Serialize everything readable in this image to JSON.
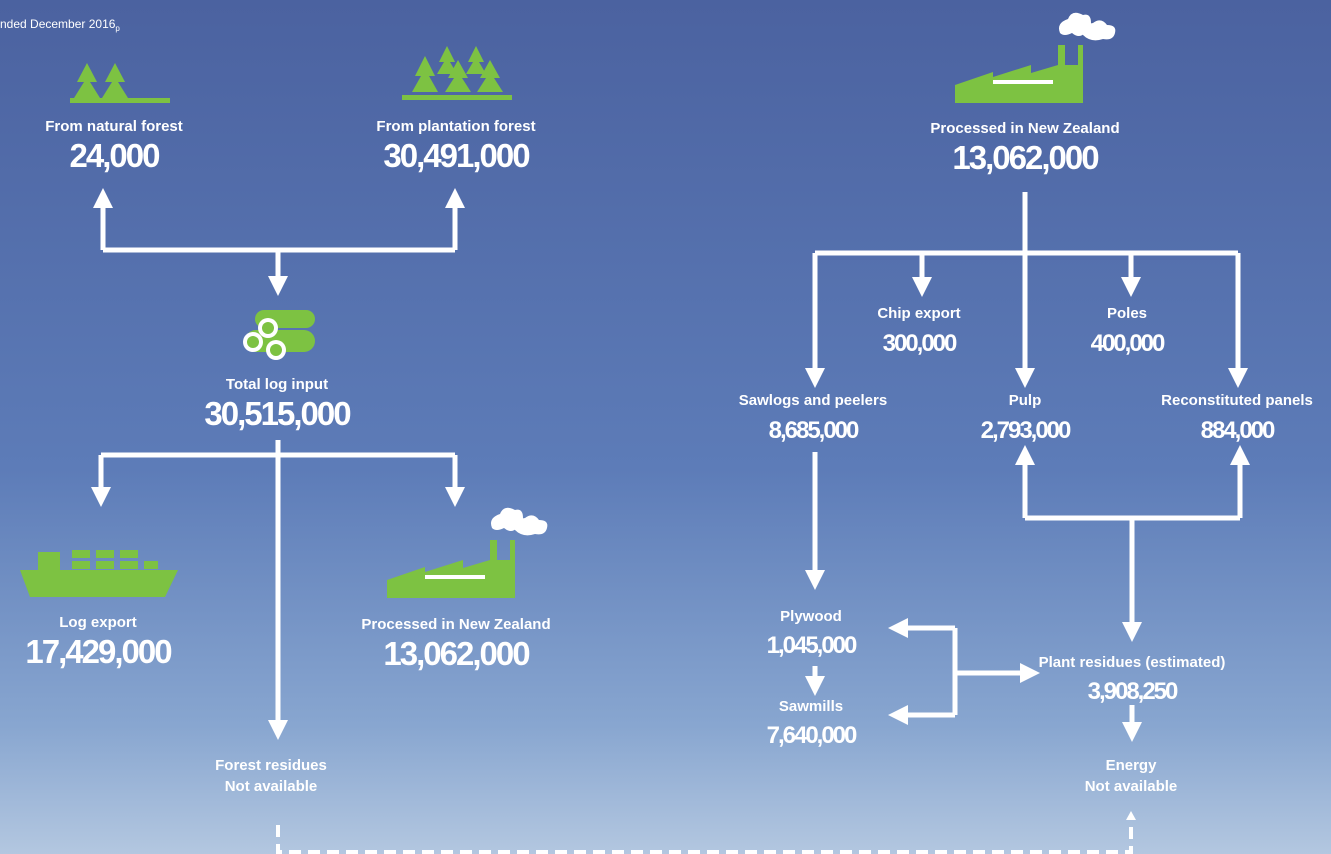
{
  "subtitle": "nded December 2016",
  "subtitle_note": "p",
  "nodes": [
    {
      "label": "From natural forest",
      "value": "24,000"
    },
    {
      "label": "From plantation forest",
      "value": "30,491,000"
    },
    {
      "label": "Total log input",
      "value": "30,515,000"
    },
    {
      "label": "Log export",
      "value": "17,429,000"
    },
    {
      "label": "Processed in New Zealand",
      "value": "13,062,000"
    },
    {
      "label": "Forest residues",
      "value": "Not available"
    },
    {
      "label": "Processed in New Zealand",
      "value": "13,062,000"
    },
    {
      "label": "Chip export",
      "value": "300,000"
    },
    {
      "label": "Poles",
      "value": "400,000"
    },
    {
      "label": "Sawlogs and peelers",
      "value": "8,685,000"
    },
    {
      "label": "Pulp",
      "value": "2,793,000"
    },
    {
      "label": "Reconstituted panels",
      "value": "884,000"
    },
    {
      "label": "Plywood",
      "value": "1,045,000"
    },
    {
      "label": "Sawmills",
      "value": "7,640,000"
    },
    {
      "label": "Plant residues (estimated)",
      "value": "3,908,250"
    },
    {
      "label": "Energy",
      "value": "Not available"
    }
  ]
}
